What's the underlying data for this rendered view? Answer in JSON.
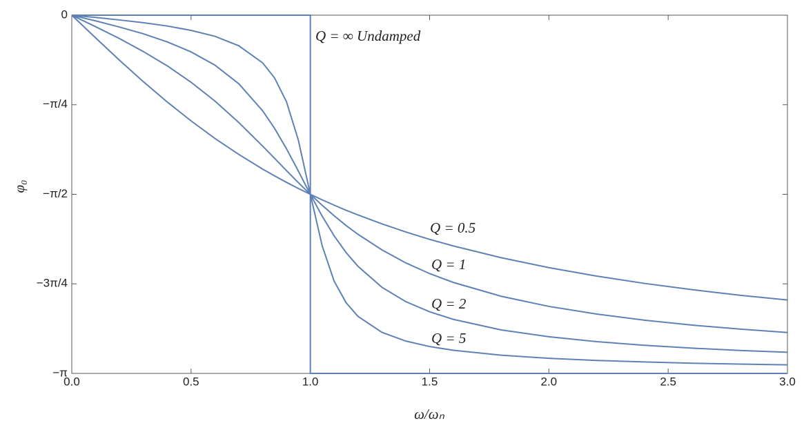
{
  "chart_data": {
    "type": "line",
    "xlabel": "ω/ωₙ",
    "ylabel": "φ₀",
    "xlim": [
      0,
      3
    ],
    "ylim": [
      -3.14159,
      0
    ],
    "xticks": [
      {
        "value": 0,
        "label": "0.0"
      },
      0.5,
      {
        "value": 1,
        "label": "1.0"
      },
      1.5,
      {
        "value": 2,
        "label": "2.0"
      },
      2.5,
      {
        "value": 3,
        "label": "3.0"
      }
    ],
    "yticks": [
      {
        "value": -3.14159,
        "label": "−π"
      },
      {
        "value": -2.35619,
        "label": "−3π/4"
      },
      {
        "value": -1.5708,
        "label": "−π/2"
      },
      {
        "value": -0.7854,
        "label": "−π/4"
      },
      0
    ],
    "series": [
      {
        "name": "Q = 0.5",
        "color": "#5e81b5",
        "x": [
          0,
          0.1,
          0.2,
          0.3,
          0.4,
          0.5,
          0.6,
          0.7,
          0.8,
          0.85,
          0.9,
          0.95,
          1.0,
          1.05,
          1.1,
          1.15,
          1.2,
          1.3,
          1.4,
          1.5,
          1.6,
          1.8,
          2.0,
          2.2,
          2.4,
          2.6,
          2.8,
          3.0
        ],
        "values": [
          0,
          -0.199,
          -0.395,
          -0.583,
          -0.761,
          -0.927,
          -1.081,
          -1.221,
          -1.35,
          -1.409,
          -1.466,
          -1.52,
          -1.571,
          -1.62,
          -1.666,
          -1.711,
          -1.752,
          -1.83,
          -1.901,
          -1.966,
          -2.024,
          -2.127,
          -2.214,
          -2.288,
          -2.352,
          -2.407,
          -2.456,
          -2.498
        ]
      },
      {
        "name": "Q = 1",
        "color": "#5e81b5",
        "x": [
          0,
          0.1,
          0.2,
          0.3,
          0.4,
          0.5,
          0.6,
          0.7,
          0.8,
          0.85,
          0.9,
          0.95,
          1.0,
          1.05,
          1.1,
          1.15,
          1.2,
          1.3,
          1.4,
          1.5,
          1.6,
          1.8,
          2.0,
          2.2,
          2.4,
          2.6,
          2.8,
          3.0
        ],
        "values": [
          0,
          -0.101,
          -0.205,
          -0.319,
          -0.444,
          -0.588,
          -0.753,
          -0.941,
          -1.148,
          -1.255,
          -1.363,
          -1.469,
          -1.571,
          -1.668,
          -1.759,
          -1.845,
          -1.922,
          -2.058,
          -2.172,
          -2.266,
          -2.344,
          -2.465,
          -2.554,
          -2.621,
          -2.675,
          -2.718,
          -2.753,
          -2.783
        ]
      },
      {
        "name": "Q = 2",
        "color": "#5e81b5",
        "x": [
          0,
          0.1,
          0.2,
          0.3,
          0.4,
          0.5,
          0.6,
          0.7,
          0.8,
          0.85,
          0.9,
          0.95,
          1.0,
          1.05,
          1.1,
          1.15,
          1.2,
          1.3,
          1.4,
          1.5,
          1.6,
          1.8,
          2.0,
          2.2,
          2.4,
          2.6,
          2.8,
          3.0
        ],
        "values": [
          0,
          -0.05,
          -0.104,
          -0.163,
          -0.234,
          -0.322,
          -0.438,
          -0.601,
          -0.838,
          -0.992,
          -1.171,
          -1.368,
          -1.571,
          -1.764,
          -1.936,
          -2.082,
          -2.203,
          -2.386,
          -2.512,
          -2.601,
          -2.668,
          -2.76,
          -2.82,
          -2.863,
          -2.895,
          -2.92,
          -2.94,
          -2.956
        ]
      },
      {
        "name": "Q = 5",
        "color": "#5e81b5",
        "x": [
          0,
          0.1,
          0.2,
          0.3,
          0.4,
          0.5,
          0.6,
          0.7,
          0.8,
          0.85,
          0.9,
          0.95,
          1.0,
          1.05,
          1.1,
          1.15,
          1.2,
          1.3,
          1.4,
          1.5,
          1.6,
          1.8,
          2.0,
          2.2,
          2.4,
          2.6,
          2.8,
          3.0
        ],
        "values": [
          0,
          -0.02,
          -0.042,
          -0.066,
          -0.095,
          -0.133,
          -0.185,
          -0.268,
          -0.418,
          -0.55,
          -0.759,
          -1.097,
          -1.571,
          -2.025,
          -2.333,
          -2.522,
          -2.642,
          -2.781,
          -2.858,
          -2.906,
          -2.939,
          -2.982,
          -3.009,
          -3.028,
          -3.041,
          -3.052,
          -3.06,
          -3.067
        ]
      },
      {
        "name": "Q = ∞  Undamped",
        "color": "#5e81b5",
        "x": [
          0,
          1,
          1,
          3
        ],
        "values": [
          0,
          0,
          -3.14159,
          -3.14159
        ]
      }
    ]
  }
}
